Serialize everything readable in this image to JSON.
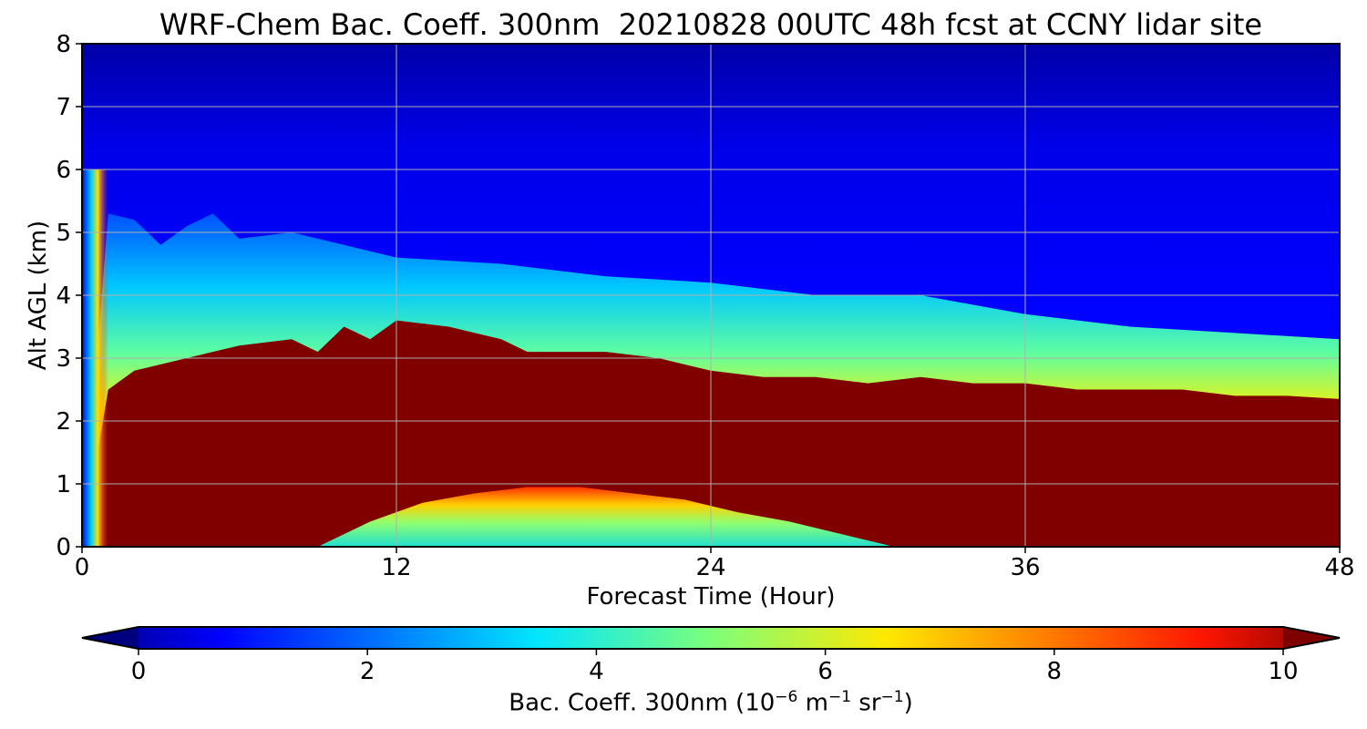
{
  "chart_data": {
    "type": "heatmap",
    "title": "WRF-Chem Bac. Coeff. 300nm  20210828 00UTC 48h fcst at CCNY lidar site",
    "xlabel": "Forecast Time (Hour)",
    "ylabel": "Alt AGL (km)",
    "xlim": [
      0,
      48
    ],
    "ylim": [
      0,
      8
    ],
    "xticks": [
      0,
      12,
      24,
      36,
      48
    ],
    "yticks": [
      0,
      1,
      2,
      3,
      4,
      5,
      6,
      7,
      8
    ],
    "grid": true,
    "colormap": "jet",
    "colorbar": {
      "label": "Bac. Coeff. 300nm",
      "units": {
        "base": "10",
        "exp1": "−6",
        "m": " m",
        "exp2": "−1",
        "sr": " sr",
        "exp3": "−1"
      },
      "range": [
        0,
        10
      ],
      "ticks": [
        0,
        2,
        4,
        6,
        8,
        10
      ],
      "extend": "both",
      "orientation": "horizontal"
    },
    "features": {
      "saturated_layer_top_km": {
        "x": [
          0,
          1,
          2,
          4,
          6,
          8,
          9,
          10,
          11,
          12,
          14,
          16,
          17,
          18,
          20,
          22,
          24,
          26,
          28,
          30,
          32,
          34,
          36,
          38,
          40,
          42,
          44,
          46,
          48
        ],
        "y": [
          0,
          2.5,
          2.8,
          3.0,
          3.2,
          3.3,
          3.1,
          3.5,
          3.3,
          3.6,
          3.5,
          3.3,
          3.1,
          3.1,
          3.1,
          3.0,
          2.8,
          2.7,
          2.7,
          2.6,
          2.7,
          2.6,
          2.6,
          2.5,
          2.5,
          2.5,
          2.4,
          2.4,
          2.35
        ]
      },
      "aerosol_layer_top_km": {
        "x": [
          0,
          1,
          2,
          3,
          4,
          5,
          6,
          8,
          10,
          12,
          16,
          20,
          24,
          28,
          32,
          36,
          40,
          44,
          48
        ],
        "y": [
          0,
          5.3,
          5.2,
          4.8,
          5.1,
          5.3,
          4.9,
          5.0,
          4.8,
          4.6,
          4.5,
          4.3,
          4.2,
          4.0,
          4.0,
          3.7,
          3.5,
          3.4,
          3.3
        ]
      },
      "low_value_pocket_top_km": {
        "x": [
          9,
          11,
          13,
          15,
          17,
          19,
          21,
          23,
          25,
          27,
          29,
          31
        ],
        "y": [
          0,
          0.4,
          0.7,
          0.85,
          0.95,
          0.95,
          0.85,
          0.75,
          0.55,
          0.4,
          0.2,
          0
        ]
      }
    }
  }
}
